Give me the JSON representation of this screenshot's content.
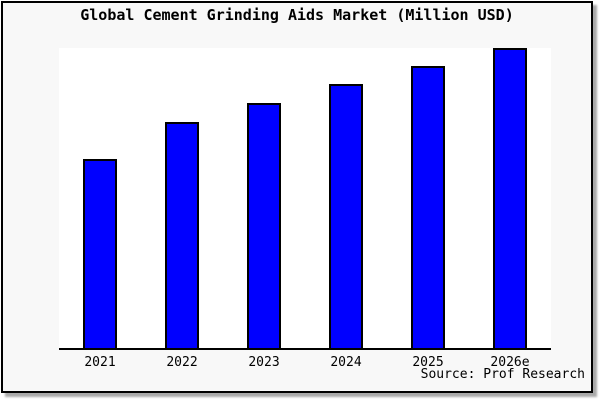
{
  "chart_data": {
    "type": "bar",
    "title": "Global Cement Grinding Aids Market (Million USD)",
    "categories": [
      "2021",
      "2022",
      "2023",
      "2024",
      "2025",
      "2026e"
    ],
    "values": [
      63.0,
      75.3,
      81.7,
      88.0,
      94.0,
      100.0
    ],
    "note": "No y-axis scale or value labels shown in the image; values are estimated bar heights as percent of the tallest bar (2026e = 100)",
    "xlabel": "",
    "ylabel": "",
    "ylim": [
      0,
      100
    ],
    "grid": false,
    "legend": false,
    "source": "Source: Prof Research",
    "bar_color": "#0000ff",
    "bar_border_color": "#000000",
    "plot_bg": "#ffffff",
    "page_bg": "#f8f8f8"
  }
}
